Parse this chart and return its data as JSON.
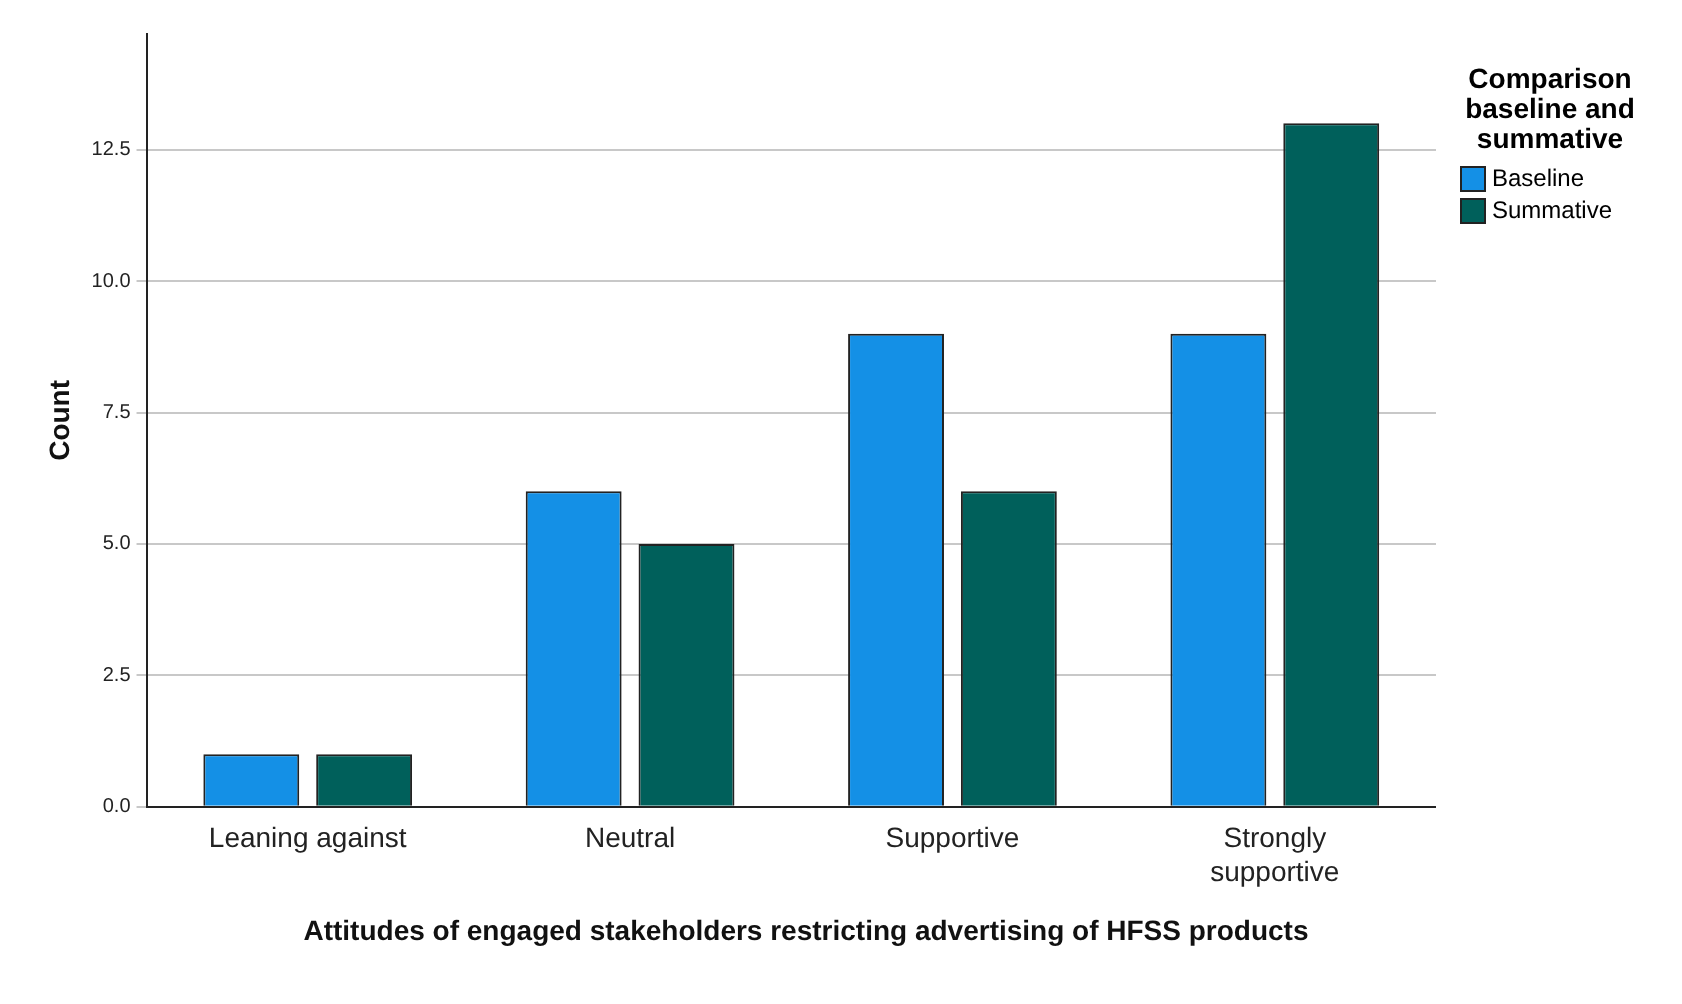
{
  "chart_data": {
    "type": "bar",
    "xlabel": "Attitudes of engaged stakeholders restricting advertising of HFSS products",
    "ylabel": "Count",
    "legend_title": "Comparison baseline and summative",
    "categories": [
      "Leaning against",
      "Neutral",
      "Supportive",
      "Strongly supportive"
    ],
    "series": [
      {
        "name": "Baseline",
        "color": "#1490e6",
        "values": [
          1,
          6,
          9,
          9
        ]
      },
      {
        "name": "Summative",
        "color": "#00605b",
        "values": [
          1,
          5,
          6,
          13
        ]
      }
    ],
    "ylim": [
      0,
      14.7
    ],
    "yticks": [
      {
        "value": 0,
        "label": "0.0"
      },
      {
        "value": 2.5,
        "label": "2.5"
      },
      {
        "value": 5,
        "label": "5.0"
      },
      {
        "value": 7.5,
        "label": "7.5"
      },
      {
        "value": 10,
        "label": "10.0"
      },
      {
        "value": 12.5,
        "label": "12.5"
      }
    ],
    "grid": "y",
    "legend": "top right"
  }
}
